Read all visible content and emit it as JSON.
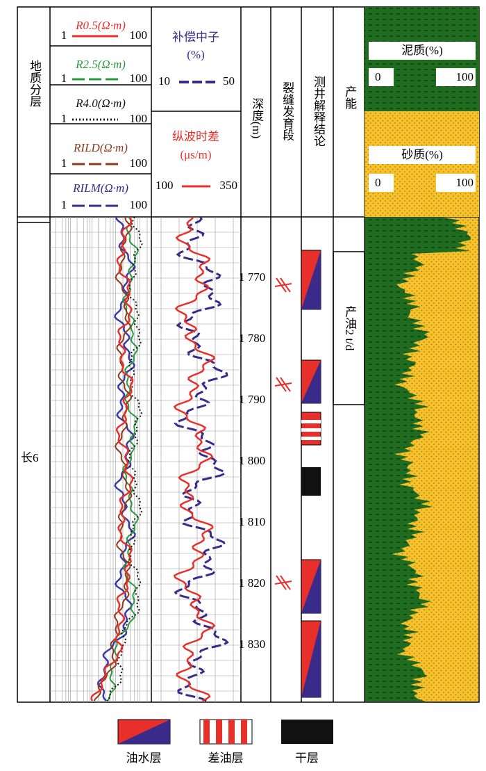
{
  "header": {
    "formation": "地质分层",
    "resistivity": [
      {
        "name": "R0.5(Ω·m)",
        "min": "1",
        "max": "100"
      },
      {
        "name": "R2.5(Ω·m)",
        "min": "1",
        "max": "100"
      },
      {
        "name": "R4.0(Ω·m)",
        "min": "1",
        "max": "100"
      },
      {
        "name": "RILD(Ω·m)",
        "min": "1",
        "max": "100"
      },
      {
        "name": "RILM(Ω·m)",
        "min": "1",
        "max": "100"
      }
    ],
    "neutron": {
      "name": "补偿中子",
      "unit": "(%)",
      "min": "10",
      "max": "50"
    },
    "ac": {
      "name": "纵波时差",
      "unit": "(μs/m)",
      "min": "100",
      "max": "350"
    },
    "depth": "深度(m)",
    "fracture": "裂缝发育段",
    "interpretation": "测井解释结论",
    "productivity": "产能",
    "mud": {
      "name": "泥质(%)",
      "min": "0",
      "max": "100"
    },
    "sand": {
      "name": "砂质(%)",
      "min": "0",
      "max": "100"
    }
  },
  "formation_label": "长6",
  "depth_ticks": [
    "1 770",
    "1 780",
    "1 790",
    "1 800",
    "1 810",
    "1 820",
    "1 830"
  ],
  "production": "产油2 t/d",
  "legend": [
    "油水层",
    "差油层",
    "干层"
  ]
}
